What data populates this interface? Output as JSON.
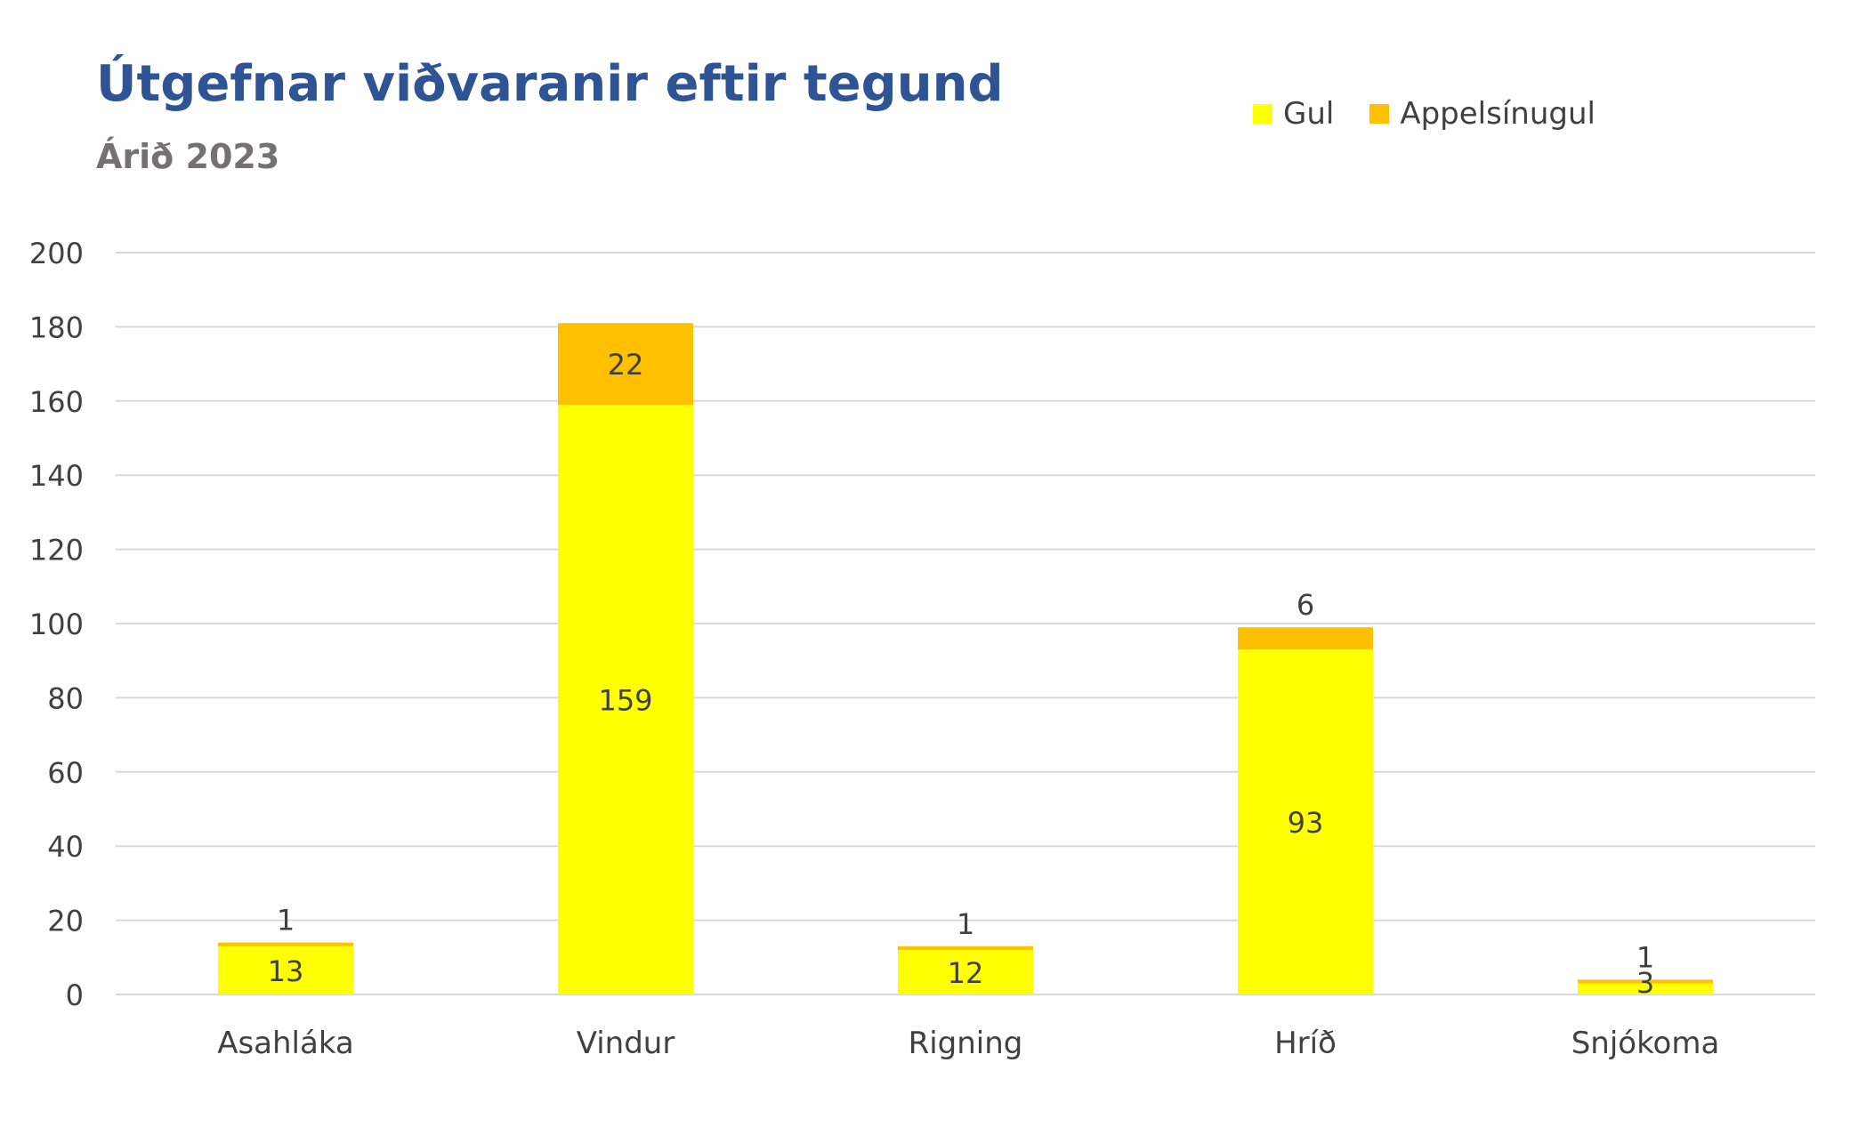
{
  "chart_data": {
    "type": "bar",
    "stacked": true,
    "title": "Útgefnar viðvaranir eftir tegund",
    "subtitle": "Árið 2023",
    "categories": [
      "Asahláka",
      "Vindur",
      "Rigning",
      "Hríð",
      "Snjókoma"
    ],
    "series": [
      {
        "name": "Gul",
        "color": "#ffff00",
        "values": [
          13,
          159,
          12,
          93,
          3
        ]
      },
      {
        "name": "Appelsínugul",
        "color": "#ffc000",
        "values": [
          1,
          22,
          1,
          6,
          1
        ]
      }
    ],
    "ylim": [
      0,
      200
    ],
    "yticks": [
      "0",
      "20",
      "40",
      "60",
      "80",
      "100",
      "120",
      "140",
      "160",
      "180",
      "200"
    ],
    "grid": true,
    "legend_position": "top-right",
    "xlabel": "",
    "ylabel": ""
  }
}
